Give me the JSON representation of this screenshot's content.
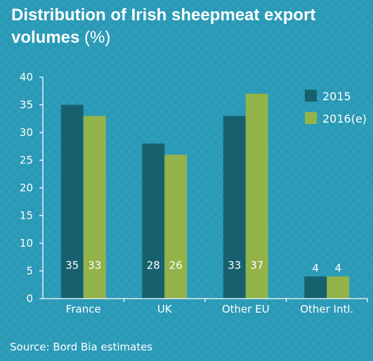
{
  "title": "Distribution of Irish sheepmeat export volumes",
  "title_unit": "(%)",
  "source": "Source: Bord Bia estimates",
  "colors": {
    "background": "#2a9bb8",
    "series_2015": "#17616e",
    "series_2016": "#92b24a"
  },
  "chart_data": {
    "type": "bar",
    "title": "Distribution of Irish sheepmeat export volumes (%)",
    "categories": [
      "France",
      "UK",
      "Other EU",
      "Other Intl."
    ],
    "series": [
      {
        "name": "2015",
        "values": [
          35,
          28,
          33,
          4
        ]
      },
      {
        "name": "2016(e)",
        "values": [
          33,
          26,
          37,
          4
        ]
      }
    ],
    "xlabel": "",
    "ylabel": "",
    "ylim": [
      0,
      40
    ],
    "yticks": [
      0,
      5,
      10,
      15,
      20,
      25,
      30,
      35,
      40
    ],
    "grid": false,
    "legend": "top-right",
    "data_labels": true
  }
}
